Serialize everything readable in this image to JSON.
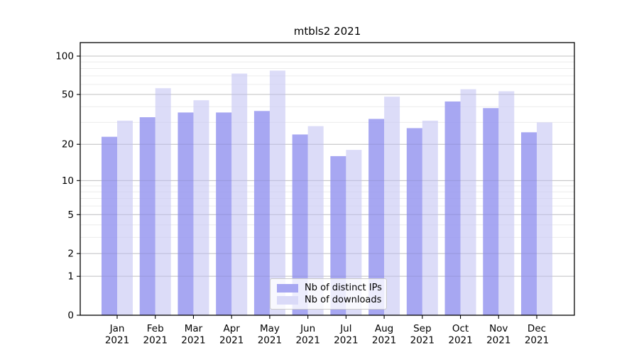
{
  "chart_data": {
    "type": "bar",
    "title": "mtbls2 2021",
    "year_label": "2021",
    "categories": [
      "Jan",
      "Feb",
      "Mar",
      "Apr",
      "May",
      "Jun",
      "Jul",
      "Aug",
      "Sep",
      "Oct",
      "Nov",
      "Dec"
    ],
    "series": [
      {
        "name": "Nb of distinct IPs",
        "color": "#9898f0",
        "legend_color": "#a7a7f2",
        "opacity": 0.85,
        "values": [
          23,
          33,
          36,
          36,
          37,
          24,
          16,
          32,
          27,
          44,
          39,
          25
        ]
      },
      {
        "name": "Nb of downloads",
        "color": "#c9c9f4",
        "legend_color": "#dadaf8",
        "opacity": 0.65,
        "values": [
          31,
          56,
          45,
          73,
          77,
          28,
          18,
          48,
          31,
          55,
          53,
          30
        ]
      }
    ],
    "yscale": "log(1+v)",
    "ylim": [
      0,
      127
    ],
    "yticks": [
      0,
      1,
      2,
      5,
      10,
      20,
      50,
      100
    ],
    "ytick_labels": [
      "0",
      "1",
      "2",
      "5",
      "10",
      "20",
      "50",
      "100"
    ],
    "minor_gridlines": [
      3,
      4,
      6,
      7,
      8,
      9,
      30,
      40,
      60,
      70,
      80,
      90
    ],
    "grid": true,
    "legend_position": "lower center",
    "colors": {
      "major_grid": "#cccccc",
      "minor_grid": "#ececec",
      "spine": "#000000"
    }
  }
}
